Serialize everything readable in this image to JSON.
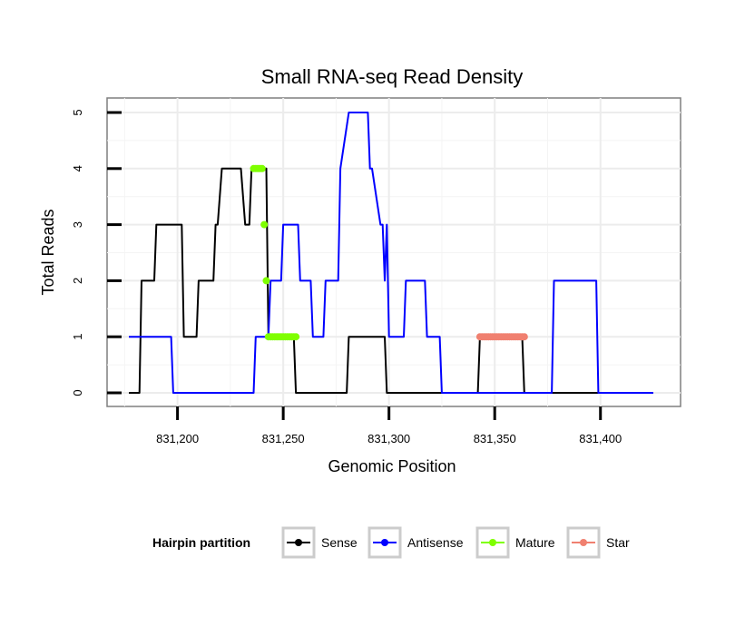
{
  "chart_data": {
    "type": "line",
    "title": "Small RNA-seq Read Density",
    "xlabel": "Genomic Position",
    "ylabel": "Total Reads",
    "xlim": [
      831172,
      831432
    ],
    "ylim": [
      -0.2,
      5.05
    ],
    "x_ticks": [
      831200,
      831250,
      831300,
      831350,
      831400
    ],
    "x_tick_labels": [
      "831,200",
      "831,250",
      "831,300",
      "831,350",
      "831,400"
    ],
    "y_ticks": [
      0,
      1,
      2,
      3,
      4,
      5
    ],
    "y_tick_labels": [
      "0",
      "1",
      "2",
      "3",
      "4",
      "5"
    ],
    "grid": true,
    "legend_position": "bottom",
    "legend_title": "Hairpin partition",
    "series": [
      {
        "name": "Sense",
        "color": "#000000",
        "style": "line",
        "x": [
          831177,
          831182,
          831183,
          831189,
          831190,
          831202,
          831203,
          831209,
          831210,
          831217,
          831218,
          831219,
          831221,
          831230,
          831232,
          831234,
          831235,
          831242,
          831243,
          831255,
          831256,
          831280,
          831281,
          831298,
          831299,
          831342,
          831343,
          831363,
          831364,
          831425
        ],
        "y": [
          0,
          0,
          2,
          2,
          3,
          3,
          1,
          1,
          2,
          2,
          3,
          3,
          4,
          4,
          3,
          3,
          4,
          4,
          1,
          1,
          0,
          0,
          1,
          1,
          0,
          0,
          1,
          1,
          0,
          0
        ]
      },
      {
        "name": "Antisense",
        "color": "#0000ff",
        "style": "line",
        "x": [
          831177,
          831197,
          831198,
          831236,
          831237,
          831243,
          831244,
          831249,
          831250,
          831257,
          831258,
          831263,
          831264,
          831269,
          831270,
          831276,
          831277,
          831281,
          831282,
          831283,
          831290,
          831291,
          831292,
          831296,
          831297,
          831298,
          831299,
          831300,
          831307,
          831308,
          831317,
          831318,
          831324,
          831325,
          831377,
          831378,
          831398,
          831399,
          831425
        ],
        "y": [
          1,
          1,
          0,
          0,
          1,
          1,
          2,
          2,
          3,
          3,
          2,
          2,
          1,
          1,
          2,
          2,
          4,
          5,
          5,
          5,
          5,
          4,
          4,
          3,
          3,
          2,
          3,
          1,
          1,
          2,
          2,
          1,
          1,
          0,
          0,
          2,
          2,
          0,
          0
        ]
      },
      {
        "name": "Mature",
        "color": "#7fff00",
        "style": "points",
        "x": [
          831236,
          831237,
          831238,
          831239,
          831240,
          831241,
          831242,
          831243,
          831244,
          831245,
          831246,
          831247,
          831248,
          831249,
          831250,
          831251,
          831252,
          831253,
          831254,
          831255,
          831256
        ],
        "y": [
          4,
          4,
          4,
          4,
          4,
          3,
          2,
          1,
          1,
          1,
          1,
          1,
          1,
          1,
          1,
          1,
          1,
          1,
          1,
          1,
          1
        ]
      },
      {
        "name": "Star",
        "color": "#f08070",
        "style": "points",
        "x": [
          831343,
          831344,
          831345,
          831346,
          831347,
          831348,
          831349,
          831350,
          831351,
          831352,
          831353,
          831354,
          831355,
          831356,
          831357,
          831358,
          831359,
          831360,
          831361,
          831362,
          831363,
          831364
        ],
        "y": [
          1,
          1,
          1,
          1,
          1,
          1,
          1,
          1,
          1,
          1,
          1,
          1,
          1,
          1,
          1,
          1,
          1,
          1,
          1,
          1,
          1,
          1
        ]
      }
    ]
  }
}
